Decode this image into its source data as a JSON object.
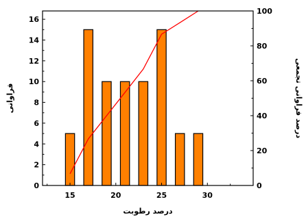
{
  "chart_data": {
    "type": "bar",
    "title": "",
    "xlabel": "درصد رطوبت",
    "ylabel": "فراوانی",
    "y2label": "درصد فراوانی تجمعی",
    "xlim": [
      12,
      35
    ],
    "ylim": [
      0,
      16.8
    ],
    "y2lim": [
      0,
      100
    ],
    "xticks": [
      15,
      20,
      25,
      30
    ],
    "yticks": [
      0,
      2,
      4,
      6,
      8,
      10,
      12,
      14,
      16
    ],
    "y2ticks": [
      0,
      20,
      40,
      60,
      80,
      100
    ],
    "grid": false,
    "series": [
      {
        "type": "bar",
        "color": "#ff8000",
        "edge_color": "#000000",
        "bar_width": 1,
        "x": [
          15,
          17,
          19,
          21,
          23,
          25,
          27,
          29
        ],
        "values": [
          5,
          15,
          10,
          10,
          10,
          15,
          5,
          5
        ]
      },
      {
        "type": "line",
        "axis": "right",
        "color": "#ff0000",
        "x": [
          15,
          17,
          19,
          21,
          23,
          25,
          27,
          29
        ],
        "values": [
          6.7,
          26.7,
          40,
          53.3,
          66.7,
          86.7,
          93.3,
          100
        ]
      }
    ]
  }
}
